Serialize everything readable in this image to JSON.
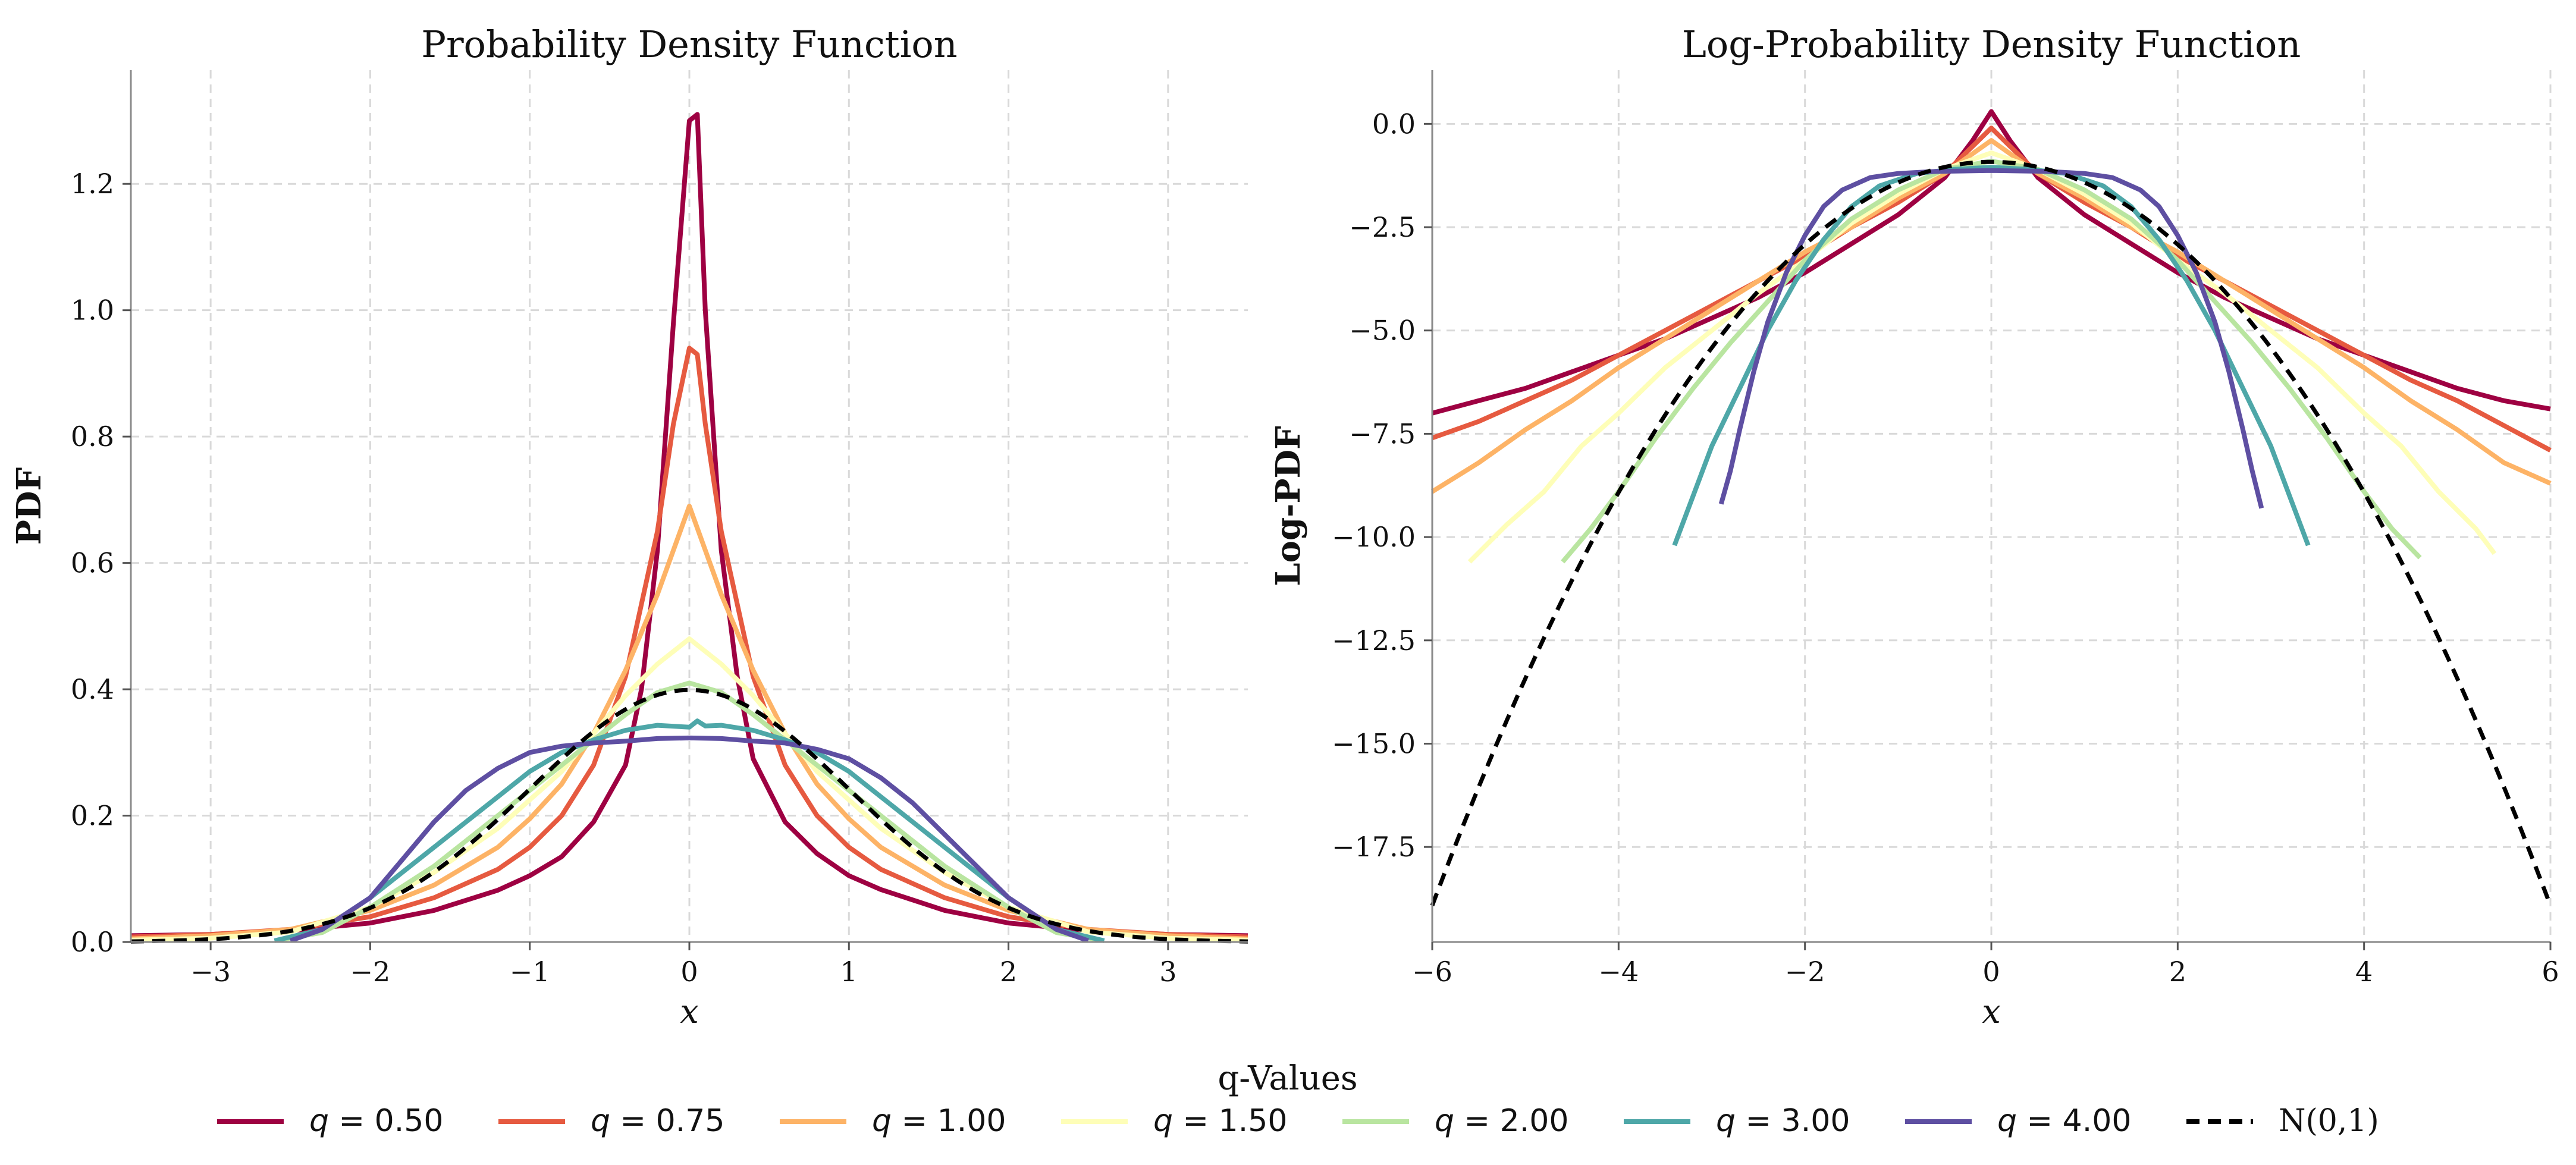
{
  "chart_data": [
    {
      "type": "line",
      "title": "Probability Density Function",
      "xlabel": "x",
      "ylabel": "PDF",
      "xlim": [
        -3.5,
        3.5
      ],
      "ylim": [
        0,
        1.38
      ],
      "xticks": [
        -3,
        -2,
        -1,
        0,
        1,
        2,
        3
      ],
      "xtick_labels": [
        "−3",
        "−2",
        "−1",
        "0",
        "1",
        "2",
        "3"
      ],
      "yticks": [
        0.0,
        0.2,
        0.4,
        0.6,
        0.8,
        1.0,
        1.2
      ],
      "ytick_labels": [
        "0.0",
        "0.2",
        "0.4",
        "0.6",
        "0.8",
        "1.0",
        "1.2"
      ],
      "grid": true,
      "series": [
        {
          "name": "q = 0.50",
          "color": "#9e0142",
          "x": [
            -3.5,
            -3.0,
            -2.5,
            -2.0,
            -1.6,
            -1.2,
            -1.0,
            -0.8,
            -0.6,
            -0.4,
            -0.3,
            -0.2,
            -0.1,
            0.0,
            0.05,
            0.1,
            0.2,
            0.3,
            0.4,
            0.6,
            0.8,
            1.0,
            1.2,
            1.6,
            2.0,
            2.5,
            3.0,
            3.5
          ],
          "y": [
            0.01,
            0.012,
            0.018,
            0.03,
            0.05,
            0.082,
            0.105,
            0.135,
            0.19,
            0.28,
            0.4,
            0.62,
            0.98,
            1.3,
            1.31,
            1.0,
            0.62,
            0.42,
            0.29,
            0.19,
            0.14,
            0.105,
            0.083,
            0.05,
            0.03,
            0.018,
            0.012,
            0.01
          ]
        },
        {
          "name": "q = 0.75",
          "color": "#e65a40",
          "x": [
            -3.5,
            -3.0,
            -2.5,
            -2.0,
            -1.6,
            -1.2,
            -1.0,
            -0.8,
            -0.6,
            -0.4,
            -0.2,
            -0.1,
            0.0,
            0.05,
            0.1,
            0.2,
            0.4,
            0.6,
            0.8,
            1.0,
            1.2,
            1.6,
            2.0,
            2.5,
            3.0,
            3.5
          ],
          "y": [
            0.008,
            0.012,
            0.02,
            0.04,
            0.07,
            0.115,
            0.15,
            0.2,
            0.28,
            0.42,
            0.65,
            0.82,
            0.94,
            0.93,
            0.82,
            0.65,
            0.42,
            0.28,
            0.2,
            0.15,
            0.115,
            0.07,
            0.04,
            0.02,
            0.012,
            0.008
          ]
        },
        {
          "name": "q = 1.00",
          "color": "#fdb366",
          "x": [
            -3.5,
            -3.0,
            -2.5,
            -2.0,
            -1.6,
            -1.2,
            -1.0,
            -0.8,
            -0.6,
            -0.4,
            -0.2,
            0.0,
            0.2,
            0.4,
            0.6,
            0.8,
            1.0,
            1.2,
            1.6,
            2.0,
            2.5,
            3.0,
            3.5
          ],
          "y": [
            0.005,
            0.01,
            0.02,
            0.05,
            0.09,
            0.15,
            0.195,
            0.25,
            0.33,
            0.43,
            0.55,
            0.69,
            0.55,
            0.43,
            0.33,
            0.25,
            0.195,
            0.15,
            0.09,
            0.05,
            0.02,
            0.01,
            0.005
          ]
        },
        {
          "name": "q = 1.50",
          "color": "#fefeb8",
          "x": [
            -3.5,
            -3.0,
            -2.5,
            -2.0,
            -1.6,
            -1.2,
            -1.0,
            -0.8,
            -0.6,
            -0.4,
            -0.2,
            0.0,
            0.2,
            0.4,
            0.6,
            0.8,
            1.0,
            1.2,
            1.6,
            2.0,
            2.5,
            3.0,
            3.5
          ],
          "y": [
            0.003,
            0.006,
            0.016,
            0.055,
            0.11,
            0.18,
            0.225,
            0.27,
            0.33,
            0.39,
            0.44,
            0.48,
            0.44,
            0.39,
            0.33,
            0.27,
            0.225,
            0.18,
            0.11,
            0.055,
            0.016,
            0.006,
            0.003
          ]
        },
        {
          "name": "q = 2.00",
          "color": "#b9e5a0",
          "x": [
            -2.6,
            -2.3,
            -2.0,
            -1.6,
            -1.2,
            -1.0,
            -0.8,
            -0.6,
            -0.4,
            -0.2,
            0.0,
            0.2,
            0.4,
            0.6,
            0.8,
            1.0,
            1.2,
            1.6,
            2.0,
            2.3,
            2.6
          ],
          "y": [
            0.002,
            0.015,
            0.055,
            0.12,
            0.2,
            0.24,
            0.28,
            0.32,
            0.36,
            0.395,
            0.41,
            0.395,
            0.36,
            0.32,
            0.28,
            0.24,
            0.2,
            0.12,
            0.055,
            0.015,
            0.002
          ]
        },
        {
          "name": "q = 3.00",
          "color": "#4ea7a8",
          "x": [
            -2.6,
            -2.3,
            -2.0,
            -1.6,
            -1.2,
            -1.0,
            -0.8,
            -0.6,
            -0.4,
            -0.2,
            0.0,
            0.05,
            0.1,
            0.2,
            0.4,
            0.6,
            0.8,
            1.0,
            1.2,
            1.6,
            2.0,
            2.3,
            2.6
          ],
          "y": [
            0.002,
            0.02,
            0.07,
            0.15,
            0.23,
            0.27,
            0.3,
            0.32,
            0.335,
            0.343,
            0.34,
            0.35,
            0.342,
            0.343,
            0.335,
            0.32,
            0.3,
            0.27,
            0.23,
            0.15,
            0.07,
            0.02,
            0.002
          ]
        },
        {
          "name": "q = 4.00",
          "color": "#5e4fa2",
          "x": [
            -2.5,
            -2.3,
            -2.0,
            -1.8,
            -1.6,
            -1.4,
            -1.2,
            -1.0,
            -0.8,
            -0.6,
            -0.4,
            -0.2,
            0.0,
            0.2,
            0.4,
            0.6,
            0.8,
            1.0,
            1.2,
            1.4,
            1.6,
            1.8,
            2.0,
            2.3,
            2.5
          ],
          "y": [
            0.002,
            0.02,
            0.07,
            0.13,
            0.19,
            0.24,
            0.275,
            0.3,
            0.31,
            0.315,
            0.318,
            0.322,
            0.323,
            0.322,
            0.318,
            0.315,
            0.305,
            0.29,
            0.26,
            0.22,
            0.17,
            0.12,
            0.07,
            0.02,
            0.002
          ]
        },
        {
          "name": "N(0,1)",
          "color": "#000000",
          "dashed": true,
          "function": "normal_pdf",
          "x_range": [
            -3.5,
            3.5
          ]
        }
      ]
    },
    {
      "type": "line",
      "title": "Log-Probability Density Function",
      "xlabel": "x",
      "ylabel": "Log-PDF",
      "xlim": [
        -6,
        6
      ],
      "ylim": [
        -19.8,
        1.3
      ],
      "xticks": [
        -6,
        -4,
        -2,
        0,
        2,
        4,
        6
      ],
      "xtick_labels": [
        "−6",
        "−4",
        "−2",
        "0",
        "2",
        "4",
        "6"
      ],
      "yticks": [
        0.0,
        -2.5,
        -5.0,
        -7.5,
        -10.0,
        -12.5,
        -15.0,
        -17.5
      ],
      "ytick_labels": [
        "0.0",
        "−2.5",
        "−5.0",
        "−7.5",
        "−10.0",
        "−12.5",
        "−15.0",
        "−17.5"
      ],
      "grid": true,
      "series": [
        {
          "name": "q = 0.50",
          "color": "#9e0142",
          "x": [
            -6,
            -5.5,
            -5,
            -4.5,
            -4,
            -3.5,
            -3,
            -2.5,
            -2,
            -1.5,
            -1,
            -0.5,
            -0.2,
            0,
            0.2,
            0.5,
            1,
            1.5,
            2,
            2.5,
            3,
            3.5,
            4,
            4.5,
            5,
            5.5,
            6
          ],
          "y": [
            -7.0,
            -6.7,
            -6.4,
            -6.0,
            -5.6,
            -5.2,
            -4.7,
            -4.2,
            -3.6,
            -2.9,
            -2.2,
            -1.3,
            -0.4,
            0.3,
            -0.4,
            -1.3,
            -2.2,
            -2.9,
            -3.6,
            -4.2,
            -4.7,
            -5.2,
            -5.6,
            -6.0,
            -6.4,
            -6.7,
            -6.9
          ]
        },
        {
          "name": "q = 0.75",
          "color": "#e65a40",
          "x": [
            -6,
            -5.5,
            -5,
            -4.5,
            -4,
            -3.5,
            -3,
            -2.5,
            -2,
            -1.5,
            -1,
            -0.5,
            0,
            0.5,
            1,
            1.5,
            2,
            2.5,
            3,
            3.5,
            4,
            4.5,
            5,
            5.5,
            6
          ],
          "y": [
            -7.6,
            -7.2,
            -6.7,
            -6.2,
            -5.6,
            -5.0,
            -4.4,
            -3.8,
            -3.2,
            -2.5,
            -1.9,
            -1.2,
            -0.1,
            -1.2,
            -1.9,
            -2.5,
            -3.2,
            -3.8,
            -4.4,
            -5.0,
            -5.6,
            -6.2,
            -6.7,
            -7.3,
            -7.9
          ]
        },
        {
          "name": "q = 1.00",
          "color": "#fdb366",
          "x": [
            -6,
            -5.5,
            -5,
            -4.5,
            -4,
            -3.5,
            -3,
            -2.5,
            -2,
            -1.5,
            -1,
            -0.5,
            0,
            0.5,
            1,
            1.5,
            2,
            2.5,
            3,
            3.5,
            4,
            4.5,
            5,
            5.5,
            6
          ],
          "y": [
            -8.9,
            -8.2,
            -7.4,
            -6.7,
            -5.9,
            -5.2,
            -4.5,
            -3.8,
            -3.1,
            -2.5,
            -1.8,
            -1.2,
            -0.4,
            -1.2,
            -1.8,
            -2.5,
            -3.1,
            -3.8,
            -4.5,
            -5.2,
            -5.9,
            -6.7,
            -7.4,
            -8.2,
            -8.7
          ]
        },
        {
          "name": "q = 1.50",
          "color": "#fefeb8",
          "x": [
            -5.6,
            -5.2,
            -4.8,
            -4.4,
            -4,
            -3.5,
            -3,
            -2.5,
            -2,
            -1.5,
            -1,
            -0.5,
            0,
            0.5,
            1,
            1.5,
            2,
            2.5,
            3,
            3.5,
            4,
            4.4,
            4.8,
            5.2,
            5.4
          ],
          "y": [
            -10.6,
            -9.7,
            -8.9,
            -7.8,
            -7.0,
            -5.9,
            -5.0,
            -4.1,
            -3.3,
            -2.4,
            -1.7,
            -1.1,
            -0.7,
            -1.1,
            -1.7,
            -2.4,
            -3.3,
            -4.1,
            -5.0,
            -5.9,
            -7.0,
            -7.8,
            -8.9,
            -9.8,
            -10.4
          ]
        },
        {
          "name": "q = 2.00",
          "color": "#b9e5a0",
          "x": [
            -4.6,
            -4.3,
            -4,
            -3.6,
            -3.2,
            -2.8,
            -2.4,
            -2,
            -1.5,
            -1,
            -0.5,
            0,
            0.5,
            1,
            1.5,
            2,
            2.4,
            2.8,
            3.2,
            3.6,
            4,
            4.3,
            4.6
          ],
          "y": [
            -10.6,
            -9.8,
            -8.9,
            -7.6,
            -6.4,
            -5.3,
            -4.3,
            -3.3,
            -2.3,
            -1.6,
            -1.1,
            -0.9,
            -1.1,
            -1.6,
            -2.3,
            -3.3,
            -4.3,
            -5.3,
            -6.4,
            -7.6,
            -8.9,
            -9.8,
            -10.5
          ]
        },
        {
          "name": "q = 3.00",
          "color": "#4ea7a8",
          "x": [
            -3.4,
            -3.2,
            -3,
            -2.7,
            -2.4,
            -2.1,
            -1.8,
            -1.5,
            -1.2,
            -0.8,
            -0.4,
            0,
            0.4,
            0.8,
            1.2,
            1.5,
            1.8,
            2.1,
            2.4,
            2.7,
            3,
            3.2,
            3.4
          ],
          "y": [
            -10.2,
            -9.0,
            -7.8,
            -6.4,
            -5.0,
            -3.8,
            -2.8,
            -2.0,
            -1.5,
            -1.2,
            -1.1,
            -1.05,
            -1.1,
            -1.2,
            -1.5,
            -2.0,
            -2.8,
            -3.8,
            -5.0,
            -6.4,
            -7.8,
            -9.0,
            -10.2
          ]
        },
        {
          "name": "q = 4.00",
          "color": "#5e4fa2",
          "x": [
            -2.9,
            -2.8,
            -2.7,
            -2.55,
            -2.4,
            -2.2,
            -2.0,
            -1.8,
            -1.6,
            -1.3,
            -1.0,
            -0.6,
            0,
            0.6,
            1.0,
            1.3,
            1.6,
            1.8,
            2.0,
            2.2,
            2.4,
            2.55,
            2.7,
            2.8,
            2.9
          ],
          "y": [
            -9.2,
            -8.4,
            -7.4,
            -6.0,
            -4.8,
            -3.6,
            -2.7,
            -2.0,
            -1.6,
            -1.3,
            -1.2,
            -1.15,
            -1.13,
            -1.15,
            -1.2,
            -1.3,
            -1.6,
            -2.0,
            -2.7,
            -3.6,
            -4.8,
            -6.0,
            -7.4,
            -8.4,
            -9.3
          ]
        },
        {
          "name": "N(0,1)",
          "color": "#000000",
          "dashed": true,
          "function": "normal_logpdf",
          "x_range": [
            -6,
            6
          ]
        }
      ]
    }
  ],
  "legend": {
    "title": "q-Values",
    "entries": [
      {
        "var": "q",
        "eq": " = 0.50",
        "color": "#9e0142",
        "dashed": false
      },
      {
        "var": "q",
        "eq": " = 0.75",
        "color": "#e65a40",
        "dashed": false
      },
      {
        "var": "q",
        "eq": " = 1.00",
        "color": "#fdb366",
        "dashed": false
      },
      {
        "var": "q",
        "eq": " = 1.50",
        "color": "#fefeb8",
        "dashed": false
      },
      {
        "var": "q",
        "eq": " = 2.00",
        "color": "#b9e5a0",
        "dashed": false
      },
      {
        "var": "q",
        "eq": " = 3.00",
        "color": "#4ea7a8",
        "dashed": false
      },
      {
        "var": "q",
        "eq": " = 4.00",
        "color": "#5e4fa2",
        "dashed": false
      },
      {
        "var": "",
        "eq": "N(0,1)",
        "color": "#000000",
        "dashed": true
      }
    ]
  }
}
